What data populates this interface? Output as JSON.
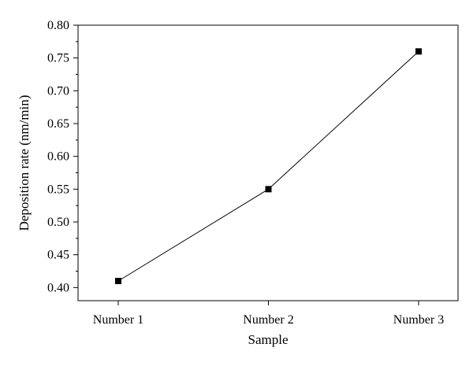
{
  "chart_data": {
    "type": "line",
    "title": "",
    "xlabel": "Sample",
    "ylabel": "Deposition rate (nm/min)",
    "categories": [
      "Number 1",
      "Number 2",
      "Number 3"
    ],
    "series": [
      {
        "values": [
          0.41,
          0.55,
          0.76
        ],
        "marker": "square",
        "color": "#000000"
      }
    ],
    "ylim": [
      0.38,
      0.8
    ],
    "y_ticks": [
      "0.40",
      "0.45",
      "0.50",
      "0.55",
      "0.60",
      "0.65",
      "0.70",
      "0.75",
      "0.80"
    ],
    "y_tick_values": [
      0.4,
      0.45,
      0.5,
      0.55,
      0.6,
      0.65,
      0.7,
      0.75,
      0.8
    ],
    "grid": false,
    "legend": "none"
  }
}
